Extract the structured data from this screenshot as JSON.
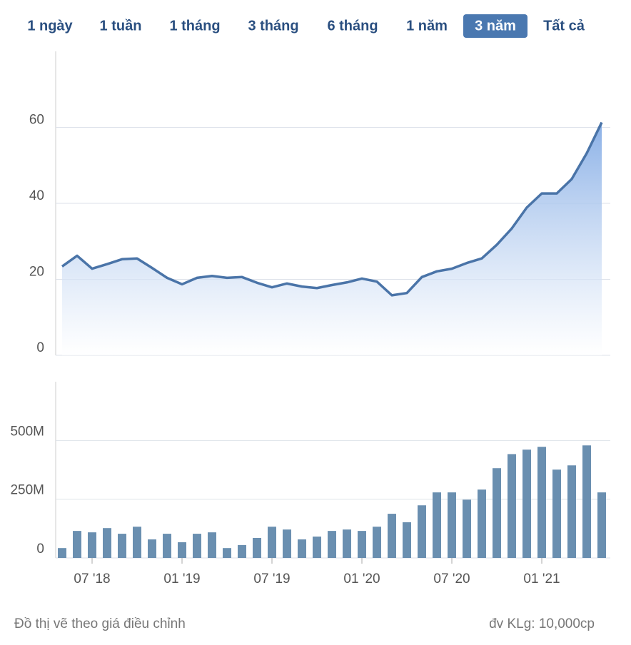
{
  "tabs": [
    "1 ngày",
    "1 tuần",
    "1 tháng",
    "3 tháng",
    "6 tháng",
    "1 năm",
    "3 năm",
    "Tất cả"
  ],
  "active_tab": 6,
  "footer": {
    "note": "Đồ thị vẽ theo giá điều chỉnh",
    "unit": "đv KLg: 10,000cp"
  },
  "chart_data": [
    {
      "type": "area",
      "color": "#4a74a8",
      "x": [
        "2018-05",
        "2018-06",
        "2018-07",
        "2018-08",
        "2018-09",
        "2018-10",
        "2018-11",
        "2018-12",
        "2019-01",
        "2019-02",
        "2019-03",
        "2019-04",
        "2019-05",
        "2019-06",
        "2019-07",
        "2019-08",
        "2019-09",
        "2019-10",
        "2019-11",
        "2019-12",
        "2020-01",
        "2020-02",
        "2020-03",
        "2020-04",
        "2020-05",
        "2020-06",
        "2020-07",
        "2020-08",
        "2020-09",
        "2020-10",
        "2020-11",
        "2020-12",
        "2021-01",
        "2021-02",
        "2021-03",
        "2021-04",
        "2021-05"
      ],
      "values": [
        23.4,
        26.2,
        22.8,
        24.0,
        25.3,
        25.5,
        23.0,
        20.4,
        18.7,
        20.4,
        20.9,
        20.4,
        20.6,
        19.1,
        17.9,
        18.9,
        18.1,
        17.7,
        18.5,
        19.2,
        20.2,
        19.4,
        15.8,
        16.4,
        20.6,
        22.1,
        22.8,
        24.3,
        25.5,
        29.1,
        33.4,
        38.9,
        42.6,
        42.6,
        46.4,
        53.2,
        61.3
      ],
      "ylim": [
        0,
        80
      ],
      "yticks": [
        0,
        20,
        40,
        60
      ],
      "grid": true
    },
    {
      "type": "bar",
      "color": "#6a8fb0",
      "x": [
        "2018-05",
        "2018-06",
        "2018-07",
        "2018-08",
        "2018-09",
        "2018-10",
        "2018-11",
        "2018-12",
        "2019-01",
        "2019-02",
        "2019-03",
        "2019-04",
        "2019-05",
        "2019-06",
        "2019-07",
        "2019-08",
        "2019-09",
        "2019-10",
        "2019-11",
        "2019-12",
        "2020-01",
        "2020-02",
        "2020-03",
        "2020-04",
        "2020-05",
        "2020-06",
        "2020-07",
        "2020-08",
        "2020-09",
        "2020-10",
        "2020-11",
        "2020-12",
        "2021-01",
        "2021-02",
        "2021-03",
        "2021-04",
        "2021-05"
      ],
      "values": [
        42,
        115,
        109,
        127,
        103,
        133,
        79,
        103,
        67,
        103,
        109,
        42,
        55,
        85,
        133,
        121,
        79,
        91,
        115,
        121,
        115,
        133,
        188,
        152,
        224,
        279,
        279,
        248,
        291,
        382,
        442,
        461,
        473,
        376,
        394,
        479,
        279
      ],
      "ylim": [
        0,
        750
      ],
      "yticks": [
        0,
        {
          "value": 250,
          "label": "250M"
        },
        {
          "value": 500,
          "label": "500M"
        }
      ],
      "grid": true,
      "xticks": [
        {
          "value": "2018-07",
          "label": "07 '18"
        },
        {
          "value": "2019-01",
          "label": "01 '19"
        },
        {
          "value": "2019-07",
          "label": "07 '19"
        },
        {
          "value": "2020-01",
          "label": "01 '20"
        },
        {
          "value": "2020-07",
          "label": "07 '20"
        },
        {
          "value": "2021-01",
          "label": "01 '21"
        }
      ]
    }
  ]
}
